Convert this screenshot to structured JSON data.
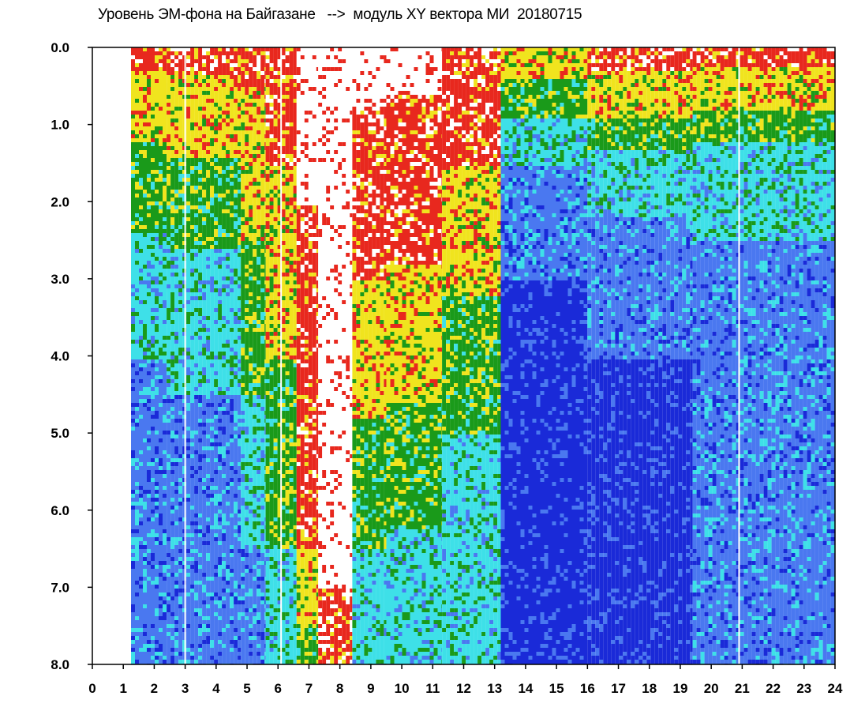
{
  "chart_data": {
    "type": "heatmap",
    "title": "Уровень ЭМ-фона на Байгазане   -->  модуль XY вектора МИ  20180715",
    "x_ticks": [
      "0",
      "1",
      "2",
      "3",
      "4",
      "5",
      "6",
      "7",
      "8",
      "9",
      "10",
      "11",
      "12",
      "13",
      "14",
      "15",
      "16",
      "17",
      "18",
      "19",
      "20",
      "21",
      "22",
      "23",
      "24"
    ],
    "y_ticks": [
      "0.0",
      "1.0",
      "2.0",
      "3.0",
      "4.0",
      "5.0",
      "6.0",
      "7.0",
      "8.0"
    ],
    "xlim": [
      0,
      24
    ],
    "ylim": [
      0,
      8
    ],
    "y_inverted": true,
    "grid": false,
    "colormap": [
      "#ffffff",
      "#e8281e",
      "#f0e41e",
      "#1a9a1a",
      "#3ee0e8",
      "#4a78f0",
      "#1a2ad8"
    ],
    "color_scale_note": "",
    "data_start_x": 1.25,
    "data_end_x": 24,
    "bands": [
      {
        "x": [
          1.25,
          2.4
        ],
        "levels": [
          [
            0,
            1
          ],
          [
            0.3,
            2
          ],
          [
            1.2,
            3
          ],
          [
            2.4,
            4
          ],
          [
            4.0,
            5
          ]
        ]
      },
      {
        "x": [
          2.4,
          4.8
        ],
        "levels": [
          [
            0,
            1
          ],
          [
            0.35,
            2
          ],
          [
            1.4,
            3
          ],
          [
            2.6,
            4
          ],
          [
            4.5,
            5
          ]
        ]
      },
      {
        "x": [
          4.8,
          5.6
        ],
        "levels": [
          [
            0,
            1
          ],
          [
            0.5,
            2
          ],
          [
            2.5,
            3
          ],
          [
            4.5,
            4
          ],
          [
            6.5,
            5
          ]
        ]
      },
      {
        "x": [
          5.6,
          6.6
        ],
        "levels": [
          [
            0,
            1
          ],
          [
            1.5,
            2
          ],
          [
            4.0,
            3
          ],
          [
            6.5,
            4
          ]
        ]
      },
      {
        "x": [
          6.6,
          7.3
        ],
        "levels": [
          [
            0,
            0
          ],
          [
            2.0,
            1
          ],
          [
            6.5,
            2
          ],
          [
            7.5,
            3
          ]
        ]
      },
      {
        "x": [
          7.3,
          8.4
        ],
        "levels": [
          [
            0,
            0
          ],
          [
            7.0,
            1
          ]
        ]
      },
      {
        "x": [
          8.4,
          9.5
        ],
        "levels": [
          [
            0,
            0
          ],
          [
            0.8,
            1
          ],
          [
            3.0,
            2
          ],
          [
            4.8,
            3
          ],
          [
            6.5,
            4
          ]
        ]
      },
      {
        "x": [
          9.5,
          11.3
        ],
        "levels": [
          [
            0,
            0
          ],
          [
            0.6,
            1
          ],
          [
            2.8,
            2
          ],
          [
            4.6,
            3
          ],
          [
            6.2,
            4
          ]
        ]
      },
      {
        "x": [
          11.3,
          13.2
        ],
        "levels": [
          [
            0,
            1
          ],
          [
            1.5,
            2
          ],
          [
            3.2,
            3
          ],
          [
            5.0,
            4
          ]
        ]
      },
      {
        "x": [
          13.2,
          16.0
        ],
        "levels": [
          [
            0,
            2
          ],
          [
            0.4,
            3
          ],
          [
            0.9,
            4
          ],
          [
            1.5,
            5
          ],
          [
            3.0,
            6
          ]
        ]
      },
      {
        "x": [
          16.0,
          19.4
        ],
        "levels": [
          [
            0,
            1
          ],
          [
            0.3,
            2
          ],
          [
            0.9,
            3
          ],
          [
            1.3,
            4
          ],
          [
            2.2,
            5
          ],
          [
            4.0,
            6
          ]
        ]
      },
      {
        "x": [
          19.4,
          24.0
        ],
        "levels": [
          [
            0,
            1
          ],
          [
            0.25,
            2
          ],
          [
            0.8,
            3
          ],
          [
            1.2,
            4
          ],
          [
            2.5,
            5
          ]
        ]
      }
    ],
    "white_gaps_x": [
      3.0,
      6.1,
      20.9
    ]
  }
}
